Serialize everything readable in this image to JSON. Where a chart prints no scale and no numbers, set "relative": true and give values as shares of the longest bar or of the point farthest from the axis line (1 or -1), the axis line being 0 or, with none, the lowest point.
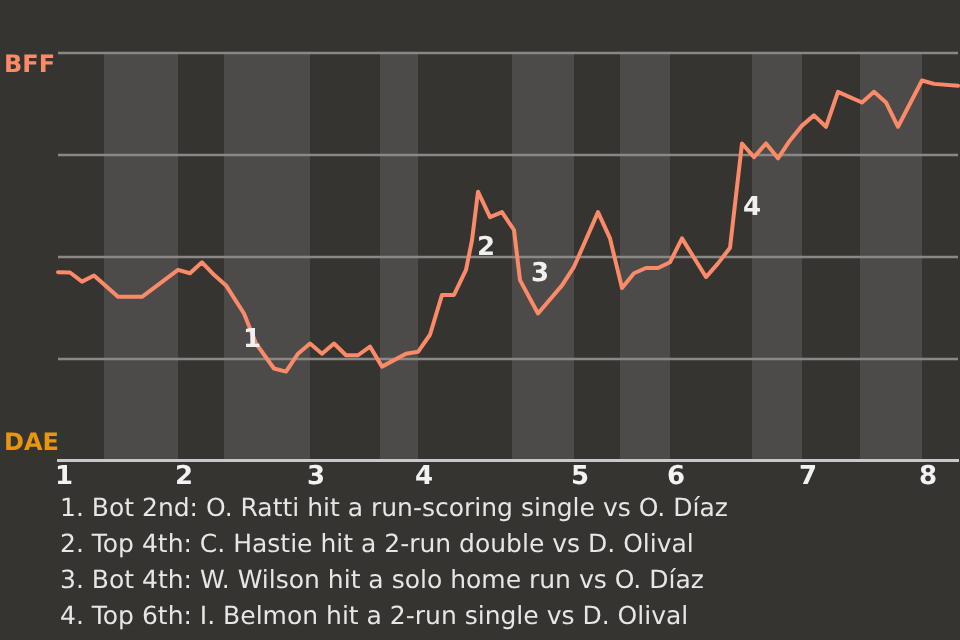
{
  "chart_data": {
    "type": "line",
    "relative": true,
    "grid": "y",
    "legend": false,
    "marker": "none",
    "line_style": "solid",
    "categories": [
      null,
      "1",
      null,
      null,
      null,
      null,
      null,
      null,
      null,
      null,
      null,
      null,
      null,
      null,
      null,
      null,
      null,
      null,
      null,
      null,
      null,
      "2",
      null,
      null,
      null,
      null,
      null,
      null,
      null,
      null,
      null,
      null,
      null,
      null,
      null,
      null,
      null,
      null,
      null,
      null,
      null,
      null,
      null,
      "3",
      null,
      null,
      null,
      null,
      null,
      null,
      null,
      null,
      null,
      null,
      null,
      null,
      null,
      null,
      null,
      null,
      null,
      "4",
      null,
      null,
      null,
      null,
      null,
      null,
      null,
      null,
      null,
      null,
      null,
      null,
      null,
      null,
      null,
      null,
      null,
      null,
      null,
      null,
      null,
      null,
      null,
      null,
      null,
      "5",
      null,
      null,
      null,
      null,
      null,
      null,
      null,
      null,
      null,
      null,
      null,
      null,
      null,
      null,
      null,
      "6",
      null,
      null,
      null,
      null,
      null,
      null,
      null,
      null,
      null,
      null,
      null,
      null,
      null,
      null,
      null,
      null,
      null,
      null,
      null,
      null,
      null,
      "7",
      null,
      null,
      null,
      null,
      null,
      null,
      null,
      null,
      null,
      null,
      null,
      null,
      null,
      null,
      null,
      null,
      null,
      null,
      null,
      "8",
      null,
      null,
      null,
      null,
      null
    ],
    "series": [
      {
        "color": "#fa8a68",
        "values": [
          0.495,
          null,
          0.494,
          null,
          0.47,
          null,
          0.486,
          null,
          null,
          null,
          0.43,
          null,
          null,
          null,
          0.43,
          null,
          null,
          null,
          0.477,
          null,
          0.501,
          null,
          0.492,
          null,
          0.521,
          null,
          0.488,
          null,
          0.46,
          null,
          null,
          0.386,
          null,
          0.307,
          null,
          null,
          0.241,
          null,
          0.233,
          null,
          0.28,
          null,
          0.307,
          null,
          0.28,
          null,
          0.307,
          null,
          0.276,
          null,
          0.276,
          null,
          0.299,
          null,
          0.246,
          null,
          null,
          null,
          0.28,
          null,
          0.285,
          null,
          0.33,
          null,
          0.435,
          null,
          0.435,
          null,
          0.501,
          0.579,
          0.707,
          null,
          0.64,
          null,
          0.653,
          null,
          0.606,
          0.474,
          null,
          null,
          0.386,
          null,
          null,
          null,
          0.46,
          null,
          0.509,
          null,
          null,
          null,
          0.653,
          null,
          0.584,
          null,
          0.453,
          null,
          0.492,
          null,
          0.506,
          null,
          0.506,
          null,
          0.521,
          null,
          0.584,
          null,
          null,
          null,
          0.482,
          null,
          0.518,
          null,
          0.559,
          null,
          0.834,
          null,
          0.798,
          null,
          0.834,
          null,
          0.795,
          null,
          0.842,
          null,
          0.881,
          null,
          0.908,
          null,
          0.878,
          null,
          0.97,
          null,
          null,
          null,
          0.942,
          null,
          0.97,
          null,
          0.942,
          null,
          0.878,
          null,
          null,
          null,
          1,
          null,
          0.991,
          null,
          null,
          null,
          0.986
        ]
      }
    ],
    "annotations": [
      "BFF",
      "DAE",
      "1",
      "2",
      "3",
      "4",
      "1. Bot 2nd: O. Ratti hit a run-scoring single vs O. Díaz",
      "2. Top 4th: C. Hastie hit a 2-run double vs D. Olival",
      "3. Bot 4th: W. Wilson hit a solo home run vs O. Díaz",
      "4. Top 6th: I. Belmon hit a 2-run single vs D. Olival"
    ]
  }
}
